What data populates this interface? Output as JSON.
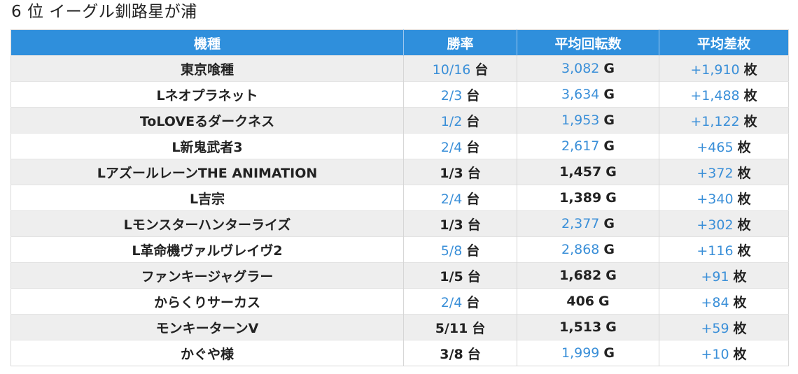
{
  "page": {
    "title": "6 位 イーグル釧路星が浦"
  },
  "colors": {
    "header_bg": "#2f8fdc",
    "highlight": "#3a8fd8",
    "odd_row": "#eeeeee"
  },
  "table": {
    "headers": [
      "機種",
      "勝率",
      "平均回転数",
      "平均差枚"
    ],
    "rate_unit": "台",
    "spin_unit": "G",
    "diff_unit": "枚",
    "rows": [
      {
        "name": "東京喰種",
        "rate": "10/16",
        "rate_hl": true,
        "spins": "3,082",
        "spins_hl": true,
        "diff": "+1,910",
        "diff_hl": true
      },
      {
        "name": "Lネオプラネット",
        "rate": "2/3",
        "rate_hl": true,
        "spins": "3,634",
        "spins_hl": true,
        "diff": "+1,488",
        "diff_hl": true
      },
      {
        "name": "ToLOVEるダークネス",
        "rate": "1/2",
        "rate_hl": true,
        "spins": "1,953",
        "spins_hl": true,
        "diff": "+1,122",
        "diff_hl": true
      },
      {
        "name": "L新鬼武者3",
        "rate": "2/4",
        "rate_hl": true,
        "spins": "2,617",
        "spins_hl": true,
        "diff": "+465",
        "diff_hl": true
      },
      {
        "name": "LアズールレーンTHE ANIMATION",
        "rate": "1/3",
        "rate_hl": false,
        "spins": "1,457",
        "spins_hl": false,
        "diff": "+372",
        "diff_hl": true
      },
      {
        "name": "L吉宗",
        "rate": "2/4",
        "rate_hl": true,
        "spins": "1,389",
        "spins_hl": false,
        "diff": "+340",
        "diff_hl": true
      },
      {
        "name": "Lモンスターハンターライズ",
        "rate": "1/3",
        "rate_hl": false,
        "spins": "2,377",
        "spins_hl": true,
        "diff": "+302",
        "diff_hl": true
      },
      {
        "name": "L革命機ヴァルヴレイヴ2",
        "rate": "5/8",
        "rate_hl": true,
        "spins": "2,868",
        "spins_hl": true,
        "diff": "+116",
        "diff_hl": true
      },
      {
        "name": "ファンキージャグラー",
        "rate": "1/5",
        "rate_hl": false,
        "spins": "1,682",
        "spins_hl": false,
        "diff": "+91",
        "diff_hl": true
      },
      {
        "name": "からくりサーカス",
        "rate": "2/4",
        "rate_hl": true,
        "spins": "406",
        "spins_hl": false,
        "diff": "+84",
        "diff_hl": true
      },
      {
        "name": "モンキーターンV",
        "rate": "5/11",
        "rate_hl": false,
        "spins": "1,513",
        "spins_hl": false,
        "diff": "+59",
        "diff_hl": true
      },
      {
        "name": "かぐや様",
        "rate": "3/8",
        "rate_hl": false,
        "spins": "1,999",
        "spins_hl": true,
        "diff": "+10",
        "diff_hl": true
      }
    ]
  }
}
